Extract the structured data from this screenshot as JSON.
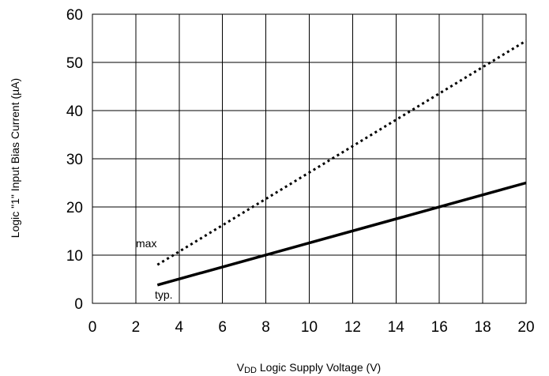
{
  "chart_data": {
    "type": "line",
    "xlabel_sub": "DD",
    "xlabel_prefix": "V",
    "xlabel_rest": " Logic Supply Voltage (V)",
    "ylabel": "Logic \"1\" Input Bias Current (µA)",
    "xlim": [
      0,
      20
    ],
    "ylim": [
      0,
      60
    ],
    "xticks": [
      0,
      2,
      4,
      6,
      8,
      10,
      12,
      14,
      16,
      18,
      20
    ],
    "yticks": [
      0,
      10,
      20,
      30,
      40,
      50,
      60
    ],
    "grid": true,
    "series": [
      {
        "name": "max",
        "style": "dotted",
        "color": "#000000",
        "x": [
          3,
          20
        ],
        "y": [
          8,
          54.5
        ]
      },
      {
        "name": "typ.",
        "style": "solid",
        "color": "#000000",
        "x": [
          3,
          20
        ],
        "y": [
          3.8,
          25
        ]
      }
    ]
  }
}
